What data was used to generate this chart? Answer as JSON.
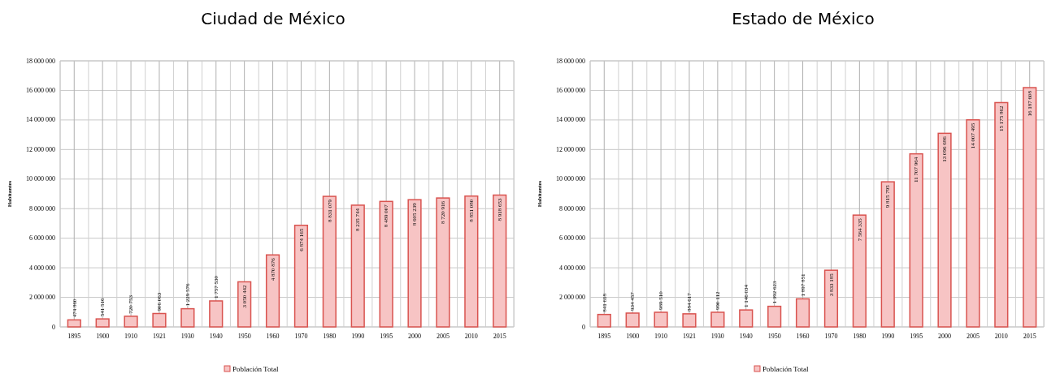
{
  "chart_data": [
    {
      "type": "bar",
      "title": "Ciudad de México",
      "ylabel": "Habitantes",
      "categories": [
        "1895",
        "1900",
        "1910",
        "1921",
        "1930",
        "1940",
        "1950",
        "1960",
        "1970",
        "1980",
        "1990",
        "1995",
        "2000",
        "2005",
        "2010",
        "2015"
      ],
      "series": [
        {
          "name": "Población Total",
          "color": "#f7c4c4",
          "values": [
            474860,
            541516,
            720753,
            906063,
            1229576,
            1757530,
            3050442,
            4870876,
            6874165,
            8831079,
            8235744,
            8489007,
            8605239,
            8720916,
            8851080,
            8918653
          ]
        }
      ],
      "value_labels": [
        "474 860",
        "541 516",
        "720 753",
        "906 063",
        "1 229 576",
        "1 757 530",
        "3 050 442",
        "4 870 876",
        "6 874 165",
        "8 831 079",
        "8 235 744",
        "8 489 007",
        "8 605 239",
        "8 720 916",
        "8 851 080",
        "8 918 653"
      ],
      "ylim": [
        0,
        18000000
      ],
      "yticks": [
        {
          "value": 0,
          "label": "0"
        },
        {
          "value": 2000000,
          "label": "2 000 000"
        },
        {
          "value": 4000000,
          "label": "4 000 000"
        },
        {
          "value": 6000000,
          "label": "6 000 000"
        },
        {
          "value": 8000000,
          "label": "8 000 000"
        },
        {
          "value": 10000000,
          "label": "10 000 000"
        },
        {
          "value": 12000000,
          "label": "12 000 000"
        },
        {
          "value": 14000000,
          "label": "14 000 000"
        },
        {
          "value": 16000000,
          "label": "16 000 000"
        },
        {
          "value": 18000000,
          "label": "18 000 000"
        }
      ],
      "grid": true,
      "legend": "bottom"
    },
    {
      "type": "bar",
      "title": "Estado de México",
      "ylabel": "Habitantes",
      "categories": [
        "1895",
        "1900",
        "1910",
        "1921",
        "1930",
        "1940",
        "1950",
        "1960",
        "1970",
        "1980",
        "1990",
        "1995",
        "2000",
        "2005",
        "2010",
        "2015"
      ],
      "series": [
        {
          "name": "Población Total",
          "color": "#f7c4c4",
          "values": [
            841618,
            934457,
            989510,
            884617,
            990112,
            1146034,
            1392623,
            1897851,
            3833185,
            7564335,
            9815795,
            11707964,
            13096686,
            14007495,
            15175862,
            16187608
          ]
        }
      ],
      "value_labels": [
        "841 618",
        "934 457",
        "989 510",
        "884 617",
        "990 112",
        "1 146 034",
        "1 392 623",
        "1 897 851",
        "3 833 185",
        "7 564 335",
        "9 815 795",
        "11 707 964",
        "13 096 686",
        "14 007 495",
        "15 175 862",
        "16 187 608"
      ],
      "ylim": [
        0,
        18000000
      ],
      "yticks": [
        {
          "value": 0,
          "label": "0"
        },
        {
          "value": 2000000,
          "label": "2 000 000"
        },
        {
          "value": 4000000,
          "label": "4 000 000"
        },
        {
          "value": 6000000,
          "label": "6 000 000"
        },
        {
          "value": 8000000,
          "label": "8 000 000"
        },
        {
          "value": 10000000,
          "label": "10 000 000"
        },
        {
          "value": 12000000,
          "label": "12 000 000"
        },
        {
          "value": 14000000,
          "label": "14 000 000"
        },
        {
          "value": 16000000,
          "label": "16 000 000"
        },
        {
          "value": 18000000,
          "label": "18 000 000"
        }
      ],
      "grid": true,
      "legend": "bottom"
    }
  ]
}
